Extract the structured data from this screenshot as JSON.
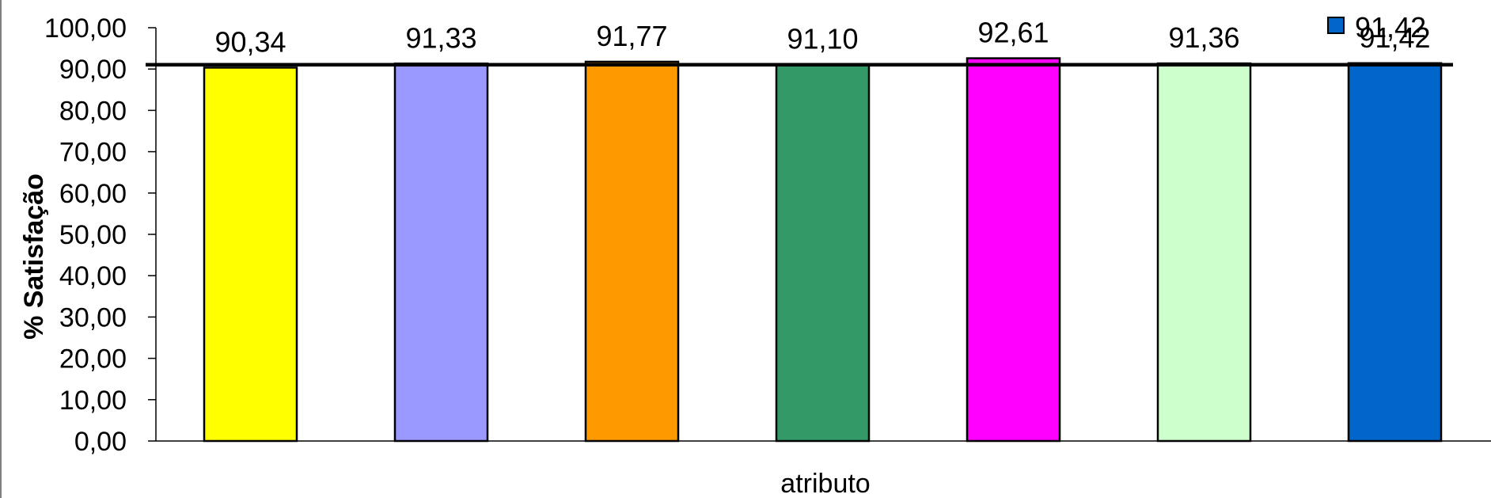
{
  "chart_data": {
    "type": "bar",
    "xlabel": "atributo",
    "ylabel": "% Satisfação",
    "ylim": [
      0,
      100
    ],
    "y_ticks": [
      "0,00",
      "10,00",
      "20,00",
      "30,00",
      "40,00",
      "50,00",
      "60,00",
      "70,00",
      "80,00",
      "90,00",
      "100,00"
    ],
    "values": [
      90.34,
      91.33,
      91.77,
      91.1,
      92.61,
      91.36,
      91.42
    ],
    "value_labels": [
      "90,34",
      "91,33",
      "91,77",
      "91,10",
      "92,61",
      "91,36",
      "91,42"
    ],
    "bar_colors": [
      "#FFFF00",
      "#9999FF",
      "#FF9900",
      "#339966",
      "#FF00FF",
      "#CCFFCC",
      "#0066CC"
    ],
    "reference_line": 91.42,
    "legend": {
      "label": "91,42",
      "color": "#0066CC",
      "position": "top-right"
    },
    "grid": false
  }
}
